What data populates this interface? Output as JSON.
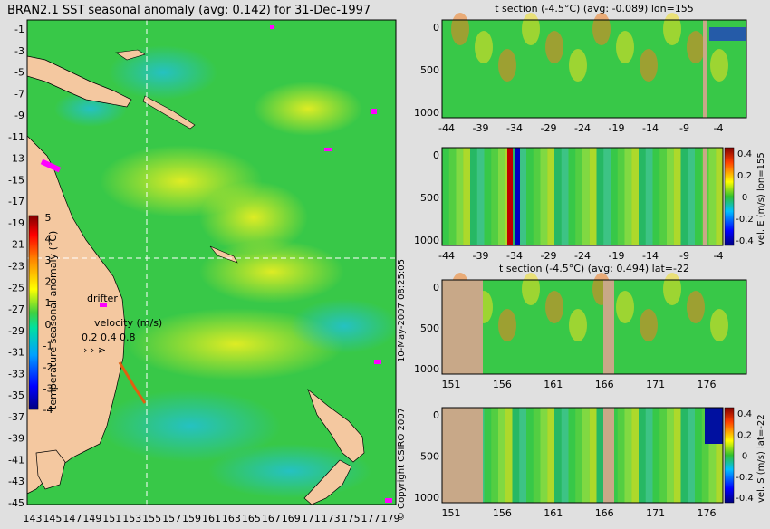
{
  "chart_data": [
    {
      "type": "heatmap",
      "title": "BRAN2.1 SST seasonal anomaly (avg: 0.142) for 31-Dec-1997",
      "x_ticks": [
        "143",
        "145",
        "147",
        "149",
        "151",
        "153",
        "155",
        "157",
        "159",
        "161",
        "163",
        "165",
        "167",
        "169",
        "171",
        "173",
        "175",
        "177",
        "179"
      ],
      "y_ticks": [
        "-1",
        "-3",
        "-5",
        "-7",
        "-9",
        "-11",
        "-13",
        "-15",
        "-17",
        "-19",
        "-21",
        "-23",
        "-25",
        "-27",
        "-29",
        "-31",
        "-33",
        "-35",
        "-37",
        "-39",
        "-41",
        "-43",
        "-45"
      ],
      "colorbar": {
        "label": "temperature seasonal anomaly (°C)",
        "ticks": [
          "5",
          "4",
          "3",
          "2",
          "1",
          "0",
          "-1",
          "-2",
          "-3",
          "-4"
        ],
        "range": [
          -4,
          5
        ]
      },
      "annotations": {
        "drifter": "drifter",
        "velocity_label": "velocity (m/s)",
        "velocity_scale": "0.2 0.4 0.8"
      }
    },
    {
      "type": "heatmap",
      "title": "t section (-4.5°C) (avg: -0.089) lon=155",
      "x_ticks": [
        "-44",
        "-39",
        "-34",
        "-29",
        "-24",
        "-19",
        "-14",
        "-9",
        "-4"
      ],
      "y_ticks": [
        "0",
        "500",
        "1000"
      ]
    },
    {
      "type": "heatmap",
      "title": "",
      "x_ticks": [
        "-44",
        "-39",
        "-34",
        "-29",
        "-24",
        "-19",
        "-14",
        "-9",
        "-4"
      ],
      "y_ticks": [
        "0",
        "500",
        "1000"
      ],
      "colorbar": {
        "label": "vel. E (m/s) lon=155",
        "ticks": [
          "0.4",
          "0.2",
          "0",
          "-0.2",
          "-0.4"
        ],
        "range": [
          -0.4,
          0.4
        ]
      }
    },
    {
      "type": "heatmap",
      "title": "t section (-4.5°C) (avg: 0.494) lat=-22",
      "x_ticks": [
        "151",
        "156",
        "161",
        "166",
        "171",
        "176"
      ],
      "y_ticks": [
        "0",
        "500",
        "1000"
      ]
    },
    {
      "type": "heatmap",
      "title": "",
      "x_ticks": [
        "151",
        "156",
        "161",
        "166",
        "171",
        "176"
      ],
      "y_ticks": [
        "0",
        "500",
        "1000"
      ],
      "colorbar": {
        "label": "vel. S (m/s) lat=-22",
        "ticks": [
          "0.4",
          "0.2",
          "0",
          "-0.2",
          "-0.4"
        ],
        "range": [
          -0.4,
          0.4
        ]
      }
    }
  ],
  "stamps": {
    "date": "10-May-2007 08:25:05",
    "copyright": "© Copyright CSIRO 2007"
  }
}
